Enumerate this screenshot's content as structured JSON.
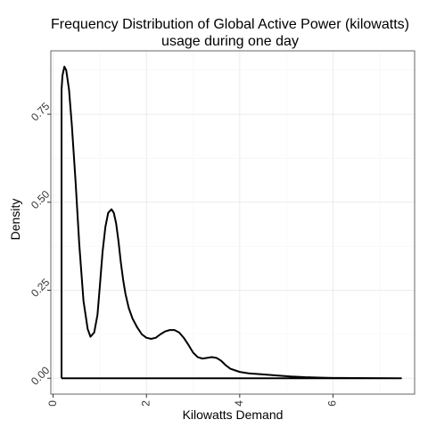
{
  "chart_data": {
    "type": "line",
    "title_line1": "Frequency Distribution of Global Active Power (kilowatts)",
    "title_line2": "usage during one day",
    "xlabel": "Kilowatts Demand",
    "ylabel": "Density",
    "xlim": [
      -0.05,
      7.75
    ],
    "ylim": [
      -0.045,
      0.93
    ],
    "x_ticks": [
      0,
      2,
      4,
      6
    ],
    "x_tick_labels": [
      "0",
      "2",
      "4",
      "6"
    ],
    "y_ticks": [
      0,
      0.25,
      0.5,
      0.75
    ],
    "y_tick_labels": [
      "0.00",
      "0.25",
      "0.50",
      "0.75"
    ],
    "grid": true,
    "background": "#ffffff",
    "panel_border": "#666666",
    "grid_major_color": "#ebebeb",
    "grid_minor_color": "#f5f5f5",
    "line_color": "#000000",
    "series": [
      {
        "x": [
          0.18,
          0.18,
          0.2,
          0.24,
          0.28,
          0.34,
          0.4,
          0.48,
          0.56,
          0.65,
          0.74,
          0.8,
          0.88,
          0.95,
          1.0,
          1.06,
          1.12,
          1.18,
          1.25,
          1.3,
          1.35,
          1.4,
          1.45,
          1.5,
          1.55,
          1.62,
          1.7,
          1.8,
          1.9,
          2.0,
          2.1,
          2.2,
          2.3,
          2.4,
          2.5,
          2.6,
          2.7,
          2.8,
          2.9,
          3.0,
          3.1,
          3.2,
          3.3,
          3.4,
          3.5,
          3.6,
          3.7,
          3.8,
          4.0,
          4.2,
          4.5,
          4.8,
          5.1,
          5.4,
          5.7,
          6.0,
          6.5,
          7.0,
          7.46,
          7.46,
          0.18
        ],
        "y": [
          0.0,
          0.82,
          0.86,
          0.885,
          0.875,
          0.82,
          0.72,
          0.56,
          0.38,
          0.22,
          0.14,
          0.118,
          0.13,
          0.18,
          0.26,
          0.36,
          0.43,
          0.47,
          0.48,
          0.47,
          0.44,
          0.39,
          0.33,
          0.28,
          0.24,
          0.2,
          0.17,
          0.145,
          0.125,
          0.115,
          0.112,
          0.115,
          0.125,
          0.133,
          0.137,
          0.137,
          0.13,
          0.115,
          0.095,
          0.073,
          0.06,
          0.056,
          0.058,
          0.06,
          0.058,
          0.05,
          0.037,
          0.027,
          0.018,
          0.014,
          0.011,
          0.008,
          0.005,
          0.003,
          0.002,
          0.001,
          0.0005,
          0.0002,
          0.0,
          0.0,
          0.0
        ]
      }
    ]
  }
}
